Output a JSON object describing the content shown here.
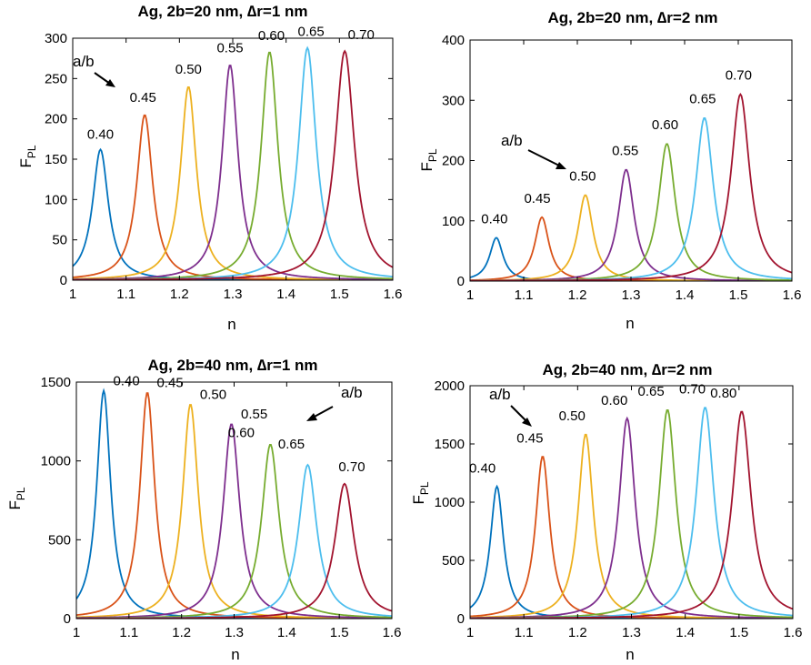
{
  "colors": [
    "#0072BD",
    "#D95319",
    "#EDB120",
    "#7E2F8E",
    "#77AC30",
    "#4DBEEE",
    "#A2142F"
  ],
  "chart_data": [
    {
      "type": "line",
      "title": "Ag, 2b=20 nm, ∆r=1 nm",
      "xlabel": "n",
      "ylabel": "F",
      "ylabel_sub": "PL",
      "xlim": [
        1,
        1.6
      ],
      "ylim": [
        0,
        300
      ],
      "xticks": [
        "1",
        "1.1",
        "1.2",
        "1.3",
        "1.4",
        "1.5",
        "1.6"
      ],
      "yticks": [
        "0",
        "50",
        "100",
        "150",
        "200",
        "250",
        "300"
      ],
      "ytick_values": [
        0,
        50,
        100,
        150,
        200,
        250,
        300
      ],
      "series": [
        {
          "peak_x": 1.052,
          "peak_y": 162,
          "width": 0.018
        },
        {
          "peak_x": 1.135,
          "peak_y": 205,
          "width": 0.018
        },
        {
          "peak_x": 1.217,
          "peak_y": 240,
          "width": 0.018
        },
        {
          "peak_x": 1.295,
          "peak_y": 267,
          "width": 0.018
        },
        {
          "peak_x": 1.369,
          "peak_y": 283,
          "width": 0.019
        },
        {
          "peak_x": 1.44,
          "peak_y": 288,
          "width": 0.02
        },
        {
          "peak_x": 1.51,
          "peak_y": 284,
          "width": 0.022
        }
      ],
      "annotations": [
        {
          "text": "0.40",
          "x": 1.052,
          "y": 162
        },
        {
          "text": "0.45",
          "x": 1.135,
          "y": 205
        },
        {
          "text": "0.50",
          "x": 1.217,
          "y": 240
        },
        {
          "text": "0.55",
          "x": 1.295,
          "y": 267
        },
        {
          "text": "0.60",
          "x": 1.369,
          "y": 283
        },
        {
          "text": "0.65",
          "x": 1.44,
          "y": 288
        },
        {
          "text": "0.70",
          "x": 1.51,
          "y": 284
        }
      ],
      "ab_label": "a/b"
    },
    {
      "type": "line",
      "title": "Ag, 2b=20 nm, ∆r=2 nm",
      "xlabel": "n",
      "ylabel": "F",
      "ylabel_sub": "PL",
      "xlim": [
        1,
        1.6
      ],
      "ylim": [
        0,
        400
      ],
      "xticks": [
        "1",
        "1.1",
        "1.2",
        "1.3",
        "1.4",
        "1.5",
        "1.6"
      ],
      "yticks": [
        "0",
        "100",
        "200",
        "300",
        "400"
      ],
      "ytick_values": [
        0,
        100,
        200,
        300,
        400
      ],
      "series": [
        {
          "peak_x": 1.049,
          "peak_y": 72,
          "width": 0.015
        },
        {
          "peak_x": 1.134,
          "peak_y": 106,
          "width": 0.016
        },
        {
          "peak_x": 1.215,
          "peak_y": 143,
          "width": 0.017
        },
        {
          "peak_x": 1.291,
          "peak_y": 185,
          "width": 0.018
        },
        {
          "peak_x": 1.367,
          "peak_y": 228,
          "width": 0.019
        },
        {
          "peak_x": 1.437,
          "peak_y": 271,
          "width": 0.02
        },
        {
          "peak_x": 1.504,
          "peak_y": 310,
          "width": 0.021
        }
      ],
      "annotations": [
        {
          "text": "0.40",
          "x": 1.049,
          "y": 72
        },
        {
          "text": "0.45",
          "x": 1.134,
          "y": 106
        },
        {
          "text": "0.50",
          "x": 1.215,
          "y": 143
        },
        {
          "text": "0.55",
          "x": 1.291,
          "y": 185
        },
        {
          "text": "0.60",
          "x": 1.367,
          "y": 228
        },
        {
          "text": "0.65",
          "x": 1.437,
          "y": 271
        },
        {
          "text": "0.70",
          "x": 1.504,
          "y": 310
        }
      ],
      "ab_label": "a/b"
    },
    {
      "type": "line",
      "title": "Ag, 2b=40 nm, ∆r=1 nm",
      "xlabel": "n",
      "ylabel": "F",
      "ylabel_sub": "PL",
      "xlim": [
        1,
        1.6
      ],
      "ylim": [
        0,
        1500
      ],
      "xticks": [
        "1",
        "1.1",
        "1.2",
        "1.3",
        "1.4",
        "1.5",
        "1.6"
      ],
      "yticks": [
        "0",
        "500",
        "1000",
        "1500"
      ],
      "ytick_values": [
        0,
        500,
        1000,
        1500
      ],
      "series": [
        {
          "peak_x": 1.052,
          "peak_y": 1445,
          "width": 0.016
        },
        {
          "peak_x": 1.135,
          "peak_y": 1435,
          "width": 0.017
        },
        {
          "peak_x": 1.217,
          "peak_y": 1360,
          "width": 0.018
        },
        {
          "peak_x": 1.295,
          "peak_y": 1235,
          "width": 0.019
        },
        {
          "peak_x": 1.369,
          "peak_y": 1105,
          "width": 0.02
        },
        {
          "peak_x": 1.44,
          "peak_y": 975,
          "width": 0.021
        },
        {
          "peak_x": 1.51,
          "peak_y": 855,
          "width": 0.022
        }
      ],
      "annotations": [
        {
          "text": "0.40",
          "x": 1.052,
          "y": 1445
        },
        {
          "text": "0.45",
          "x": 1.135,
          "y": 1435
        },
        {
          "text": "0.50",
          "x": 1.217,
          "y": 1360
        },
        {
          "text": "0.55",
          "x": 1.295,
          "y": 1235
        },
        {
          "text": "0.60",
          "x": 1.369,
          "y": 1105
        },
        {
          "text": "0.65",
          "x": 1.44,
          "y": 975
        },
        {
          "text": "0.70",
          "x": 1.51,
          "y": 855
        }
      ],
      "ab_label": "a/b"
    },
    {
      "type": "line",
      "title": "Ag, 2b=40 nm, ∆r=2 nm",
      "xlabel": "n",
      "ylabel": "F",
      "ylabel_sub": "PL",
      "xlim": [
        1,
        1.6
      ],
      "ylim": [
        0,
        2000
      ],
      "xticks": [
        "1",
        "1.1",
        "1.2",
        "1.3",
        "1.4",
        "1.5",
        "1.6"
      ],
      "yticks": [
        "0",
        "500",
        "1000",
        "1500",
        "2000"
      ],
      "ytick_values": [
        0,
        500,
        1000,
        1500,
        2000
      ],
      "series": [
        {
          "peak_x": 1.05,
          "peak_y": 1135,
          "width": 0.015
        },
        {
          "peak_x": 1.135,
          "peak_y": 1395,
          "width": 0.016
        },
        {
          "peak_x": 1.215,
          "peak_y": 1585,
          "width": 0.017
        },
        {
          "peak_x": 1.292,
          "peak_y": 1720,
          "width": 0.018
        },
        {
          "peak_x": 1.367,
          "peak_y": 1795,
          "width": 0.019
        },
        {
          "peak_x": 1.437,
          "peak_y": 1815,
          "width": 0.02
        },
        {
          "peak_x": 1.505,
          "peak_y": 1780,
          "width": 0.021
        }
      ],
      "annotations": [
        {
          "text": "0.40",
          "x": 1.05,
          "y": 1135
        },
        {
          "text": "0.45",
          "x": 1.135,
          "y": 1395
        },
        {
          "text": "0.50",
          "x": 1.215,
          "y": 1585
        },
        {
          "text": "0.60",
          "x": 1.292,
          "y": 1720
        },
        {
          "text": "0.65",
          "x": 1.367,
          "y": 1795
        },
        {
          "text": "0.70",
          "x": 1.437,
          "y": 1815
        },
        {
          "text": "0.80",
          "x": 1.505,
          "y": 1780
        }
      ],
      "ab_label": "a/b"
    }
  ]
}
